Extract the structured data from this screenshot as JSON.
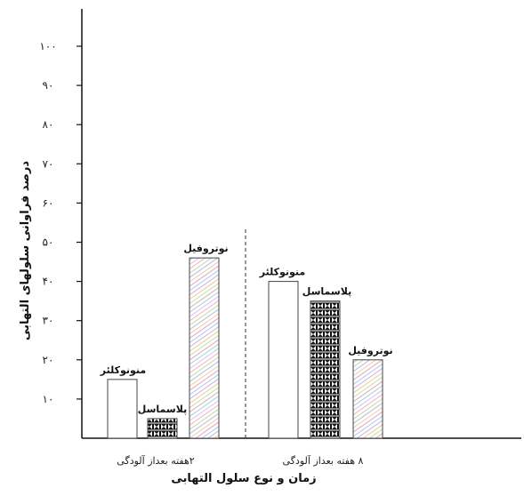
{
  "chart_data": {
    "type": "bar",
    "title": "",
    "xlabel": "زمان و نوع سلول التهابی",
    "ylabel": "درصد فراوانی سلولهای التهابی",
    "ylim": [
      0,
      100
    ],
    "yticks": [
      10,
      20,
      30,
      40,
      50,
      60,
      70,
      80,
      90,
      100
    ],
    "ytick_labels": [
      "۱۰",
      "۲۰",
      "۳۰",
      "۴۰",
      "۵۰",
      "۶۰",
      "۷۰",
      "۸۰",
      "۹۰",
      "۱۰۰"
    ],
    "categories": [
      "۲هفته بعداز آلودگی",
      "۸ هفته بعداز آلودگی"
    ],
    "series": [
      {
        "name": "منونوکلئر",
        "pattern": "plain",
        "values": [
          15,
          40
        ]
      },
      {
        "name": "پلاسماسل",
        "pattern": "checker",
        "values": [
          5,
          35
        ]
      },
      {
        "name": "نوتروفیل",
        "pattern": "colored-diagonal",
        "values": [
          46,
          20
        ]
      }
    ],
    "divider": "dashed-vertical-between-groups",
    "grid": false,
    "legend": "none"
  }
}
